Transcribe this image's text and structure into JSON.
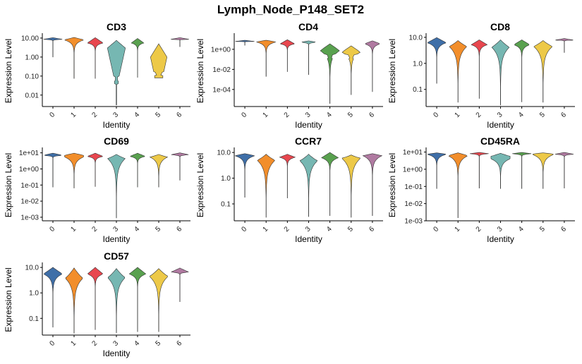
{
  "figure_title": "Lymph_Node_P148_SET2",
  "chart_data": {
    "type": "violin",
    "title": "Lymph_Node_P148_SET2",
    "xlabel": "Identity",
    "ylabel": "Expression Level",
    "categories": [
      "0",
      "1",
      "2",
      "3",
      "4",
      "5",
      "6"
    ],
    "colors": [
      "#3F6FA8",
      "#F28E2B",
      "#E8474F",
      "#76B7B2",
      "#59A14F",
      "#EDC948",
      "#B07AA1"
    ],
    "yscale": "log",
    "panels": [
      {
        "gene": "CD3",
        "yticks": [
          {
            "v": 10,
            "label": "10.00"
          },
          {
            "v": 1,
            "label": "1.00"
          },
          {
            "v": 0.1,
            "label": "0.10"
          },
          {
            "v": 0.01,
            "label": "0.01"
          }
        ],
        "ylim": [
          0.0025,
          14
        ],
        "violins": [
          {
            "min": 1.0,
            "max": 10.5,
            "mode": 8.5,
            "width": 0.95,
            "shape": "flat"
          },
          {
            "min": 0.075,
            "max": 10.8,
            "mode": 8.0,
            "width": 0.95,
            "shape": "wedge"
          },
          {
            "min": 0.075,
            "max": 10.5,
            "mode": 5.5,
            "width": 0.75,
            "shape": "diamond"
          },
          {
            "min": 0.003,
            "max": 7.5,
            "mode": 3.0,
            "width": 0.85,
            "shape": "cd3c3"
          },
          {
            "min": 0.085,
            "max": 9.5,
            "mode": 5.5,
            "width": 0.6,
            "shape": "diamond"
          },
          {
            "min": 0.08,
            "max": 5.0,
            "mode": 1.0,
            "width": 0.78,
            "shape": "cd3c5"
          },
          {
            "min": 3.5,
            "max": 10.5,
            "mode": 8.5,
            "width": 0.9,
            "shape": "flat"
          }
        ]
      },
      {
        "gene": "CD4",
        "yticks": [
          {
            "v": 1,
            "label": "1e+00"
          },
          {
            "v": 0.01,
            "label": "1e-02"
          },
          {
            "v": 0.0001,
            "label": "1e-04"
          }
        ],
        "ylim": [
          2e-06,
          25
        ],
        "violins": [
          {
            "min": 2.5,
            "max": 8,
            "mode": 6,
            "width": 0.95,
            "shape": "flat"
          },
          {
            "min": 0.002,
            "max": 8,
            "mode": 5.5,
            "width": 0.95,
            "shape": "wedge"
          },
          {
            "min": 0.006,
            "max": 9,
            "mode": 3.5,
            "width": 0.7,
            "shape": "diamond"
          },
          {
            "min": 0.003,
            "max": 7,
            "mode": 5.0,
            "width": 0.8,
            "shape": "flat"
          },
          {
            "min": 4e-06,
            "max": 3.5,
            "mode": 0.7,
            "width": 0.9,
            "shape": "bimodal"
          },
          {
            "min": 3e-05,
            "max": 2.2,
            "mode": 0.5,
            "width": 0.85,
            "shape": "bimodal"
          },
          {
            "min": 6e-05,
            "max": 7,
            "mode": 3.5,
            "width": 0.75,
            "shape": "diamond"
          }
        ]
      },
      {
        "gene": "CD8",
        "yticks": [
          {
            "v": 10,
            "label": "10.0"
          },
          {
            "v": 1,
            "label": "1.0"
          },
          {
            "v": 0.1,
            "label": "0.1"
          }
        ],
        "ylim": [
          0.022,
          12
        ],
        "violins": [
          {
            "min": 0.17,
            "max": 9.8,
            "mode": 6.2,
            "width": 0.9,
            "shape": "wedge"
          },
          {
            "min": 0.032,
            "max": 7.5,
            "mode": 4.5,
            "width": 0.85,
            "shape": "teardrop"
          },
          {
            "min": 0.045,
            "max": 8.0,
            "mode": 5.2,
            "width": 0.75,
            "shape": "diamond"
          },
          {
            "min": 0.025,
            "max": 8.0,
            "mode": 4.2,
            "width": 0.85,
            "shape": "teardrop"
          },
          {
            "min": 0.033,
            "max": 8.0,
            "mode": 5.2,
            "width": 0.75,
            "shape": "diamond"
          },
          {
            "min": 0.032,
            "max": 7.5,
            "mode": 4.5,
            "width": 0.9,
            "shape": "teardrop"
          },
          {
            "min": 2.6,
            "max": 9.0,
            "mode": 7.8,
            "width": 0.9,
            "shape": "flat"
          }
        ]
      },
      {
        "gene": "CD69",
        "yticks": [
          {
            "v": 10,
            "label": "1e+01"
          },
          {
            "v": 1,
            "label": "1e+00"
          },
          {
            "v": 0.1,
            "label": "1e-01"
          },
          {
            "v": 0.01,
            "label": "1e-02"
          },
          {
            "v": 0.001,
            "label": "1e-03"
          }
        ],
        "ylim": [
          0.0006,
          16
        ],
        "violins": [
          {
            "min": 0.075,
            "max": 9.5,
            "mode": 7.0,
            "width": 0.95,
            "shape": "flat"
          },
          {
            "min": 0.065,
            "max": 9.5,
            "mode": 5.5,
            "width": 0.9,
            "shape": "hourglass"
          },
          {
            "min": 0.08,
            "max": 9.5,
            "mode": 6.0,
            "width": 0.75,
            "shape": "diamond"
          },
          {
            "min": 0.0009,
            "max": 8.0,
            "mode": 4.5,
            "width": 0.85,
            "shape": "teardrop"
          },
          {
            "min": 0.075,
            "max": 9.5,
            "mode": 6.0,
            "width": 0.75,
            "shape": "diamond"
          },
          {
            "min": 0.075,
            "max": 8.0,
            "mode": 5.5,
            "width": 0.85,
            "shape": "teardrop"
          },
          {
            "min": 0.2,
            "max": 10,
            "mode": 7.5,
            "width": 0.9,
            "shape": "flat"
          }
        ]
      },
      {
        "gene": "CCR7",
        "yticks": [
          {
            "v": 10,
            "label": "10.0"
          },
          {
            "v": 1,
            "label": "1.0"
          },
          {
            "v": 0.1,
            "label": "0.1"
          }
        ],
        "ylim": [
          0.022,
          13
        ],
        "violins": [
          {
            "min": 0.18,
            "max": 9.0,
            "mode": 7.5,
            "width": 0.95,
            "shape": "wedge"
          },
          {
            "min": 0.03,
            "max": 8.5,
            "mode": 5.0,
            "width": 0.85,
            "shape": "teardrop"
          },
          {
            "min": 0.17,
            "max": 8.5,
            "mode": 6.5,
            "width": 0.75,
            "shape": "diamond"
          },
          {
            "min": 0.032,
            "max": 8.5,
            "mode": 4.8,
            "width": 0.85,
            "shape": "teardrop"
          },
          {
            "min": 0.035,
            "max": 10,
            "mode": 6.2,
            "width": 0.8,
            "shape": "diamond"
          },
          {
            "min": 0.03,
            "max": 8.0,
            "mode": 6.0,
            "width": 0.9,
            "shape": "teardrop"
          },
          {
            "min": 0.035,
            "max": 9.0,
            "mode": 7.5,
            "width": 0.9,
            "shape": "wedge"
          }
        ]
      },
      {
        "gene": "CD45RA",
        "yticks": [
          {
            "v": 10,
            "label": "1e+01"
          },
          {
            "v": 1,
            "label": "1e+00"
          },
          {
            "v": 0.1,
            "label": "1e-01"
          },
          {
            "v": 0.01,
            "label": "1e-02"
          },
          {
            "v": 0.001,
            "label": "1e-03"
          }
        ],
        "ylim": [
          0.001,
          14
        ],
        "violins": [
          {
            "min": 0.075,
            "max": 9.0,
            "mode": 7.5,
            "width": 0.95,
            "shape": "wedge"
          },
          {
            "min": 0.0015,
            "max": 9.0,
            "mode": 6.2,
            "width": 0.95,
            "shape": "wedge"
          },
          {
            "min": 0.08,
            "max": 9.5,
            "mode": 8.0,
            "width": 0.95,
            "shape": "flat"
          },
          {
            "min": 0.075,
            "max": 8.5,
            "mode": 4.0,
            "width": 0.9,
            "shape": "hourglass"
          },
          {
            "min": 0.075,
            "max": 9.5,
            "mode": 8.0,
            "width": 0.95,
            "shape": "flat"
          },
          {
            "min": 0.075,
            "max": 9.0,
            "mode": 7.0,
            "width": 0.95,
            "shape": "hourglass"
          },
          {
            "min": 0.08,
            "max": 9.5,
            "mode": 7.5,
            "width": 0.9,
            "shape": "flat"
          }
        ]
      },
      {
        "gene": "CD57",
        "yticks": [
          {
            "v": 10,
            "label": "10.0"
          },
          {
            "v": 1,
            "label": "1.0"
          },
          {
            "v": 0.1,
            "label": "0.1"
          }
        ],
        "ylim": [
          0.022,
          13
        ],
        "violins": [
          {
            "min": 0.045,
            "max": 10,
            "mode": 5.5,
            "width": 0.9,
            "shape": "wedge"
          },
          {
            "min": 0.026,
            "max": 9.5,
            "mode": 3.8,
            "width": 0.85,
            "shape": "teardrop"
          },
          {
            "min": 0.036,
            "max": 10,
            "mode": 5.5,
            "width": 0.75,
            "shape": "diamond"
          },
          {
            "min": 0.027,
            "max": 9.0,
            "mode": 4.0,
            "width": 0.85,
            "shape": "teardrop"
          },
          {
            "min": 0.03,
            "max": 10,
            "mode": 5.5,
            "width": 0.8,
            "shape": "diamond"
          },
          {
            "min": 0.03,
            "max": 9.0,
            "mode": 4.5,
            "width": 0.9,
            "shape": "teardrop"
          },
          {
            "min": 0.45,
            "max": 9.5,
            "mode": 6.5,
            "width": 0.85,
            "shape": "flat"
          }
        ]
      }
    ]
  }
}
